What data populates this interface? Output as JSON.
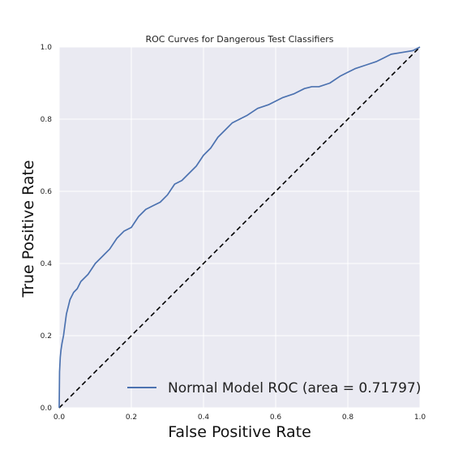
{
  "chart_data": {
    "type": "line",
    "title": "ROC Curves for Dangerous Test Classifiers",
    "xlabel": "False Positive Rate",
    "ylabel": "True Positive Rate",
    "xlim": [
      0,
      1
    ],
    "ylim": [
      0,
      1
    ],
    "xticks": [
      "0.0",
      "0.2",
      "0.4",
      "0.6",
      "0.8",
      "1.0"
    ],
    "yticks": [
      "0.0",
      "0.2",
      "0.4",
      "0.6",
      "0.8",
      "1.0"
    ],
    "grid": true,
    "legend_position": "lower-right",
    "series": [
      {
        "name": "Normal Model ROC (area = 0.71797)",
        "color": "#4c72b0",
        "style": "solid",
        "x": [
          0.0,
          0.001,
          0.003,
          0.005,
          0.008,
          0.012,
          0.016,
          0.02,
          0.025,
          0.03,
          0.04,
          0.05,
          0.06,
          0.08,
          0.1,
          0.12,
          0.14,
          0.16,
          0.18,
          0.2,
          0.22,
          0.24,
          0.26,
          0.28,
          0.3,
          0.32,
          0.34,
          0.36,
          0.38,
          0.4,
          0.42,
          0.44,
          0.46,
          0.48,
          0.5,
          0.52,
          0.55,
          0.58,
          0.6,
          0.62,
          0.65,
          0.68,
          0.7,
          0.72,
          0.75,
          0.78,
          0.8,
          0.82,
          0.85,
          0.88,
          0.9,
          0.92,
          0.95,
          0.98,
          1.0
        ],
        "y": [
          0.0,
          0.1,
          0.14,
          0.16,
          0.18,
          0.2,
          0.23,
          0.26,
          0.28,
          0.3,
          0.32,
          0.33,
          0.35,
          0.37,
          0.4,
          0.42,
          0.44,
          0.47,
          0.49,
          0.5,
          0.53,
          0.55,
          0.56,
          0.57,
          0.59,
          0.62,
          0.63,
          0.65,
          0.67,
          0.7,
          0.72,
          0.75,
          0.77,
          0.79,
          0.8,
          0.81,
          0.83,
          0.84,
          0.85,
          0.86,
          0.87,
          0.885,
          0.89,
          0.89,
          0.9,
          0.92,
          0.93,
          0.94,
          0.95,
          0.96,
          0.97,
          0.98,
          0.985,
          0.99,
          1.0
        ]
      },
      {
        "name": "",
        "color": "#000000",
        "style": "dashed",
        "x": [
          0,
          1
        ],
        "y": [
          0,
          1
        ]
      }
    ]
  }
}
